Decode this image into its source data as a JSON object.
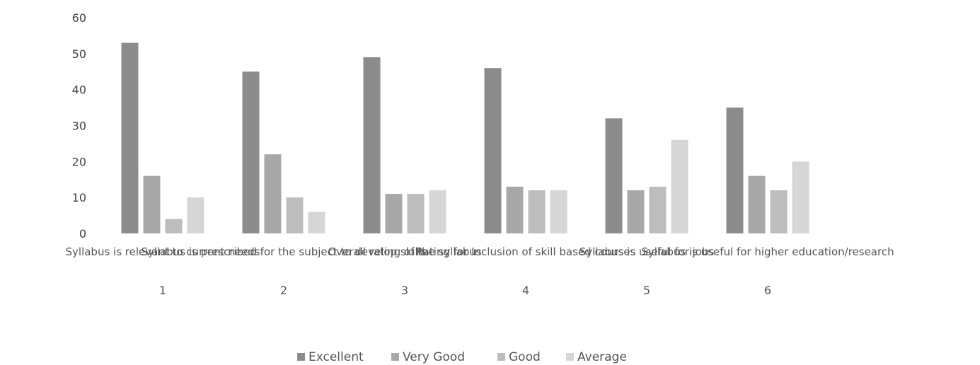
{
  "chart_data": {
    "type": "bar",
    "title": "",
    "xlabel": "",
    "ylabel": "",
    "ylim": [
      0,
      60
    ],
    "yticks": [
      0,
      10,
      20,
      30,
      40,
      50,
      60
    ],
    "grid": false,
    "legend_position": "bottom",
    "categories": [
      "Syllabus is relevant to current needs",
      "Syllabus is prescribed for the subject to develop skills",
      "Overall rating of the syllabus",
      "Rating for Inclusion of skill based courses",
      "Syllabus is useful for jobs",
      "Syllabus is useful for higher education/research"
    ],
    "category_numbers": [
      "1",
      "2",
      "3",
      "4",
      "5",
      "6"
    ],
    "series": [
      {
        "name": "Excellent",
        "color": "#8c8c8c",
        "values": [
          53,
          45,
          49,
          46,
          32,
          35
        ]
      },
      {
        "name": "Very Good",
        "color": "#a8a8a8",
        "values": [
          16,
          22,
          11,
          13,
          12,
          16
        ]
      },
      {
        "name": "Good",
        "color": "#bdbdbd",
        "values": [
          4,
          10,
          11,
          12,
          13,
          12
        ]
      },
      {
        "name": "Average",
        "color": "#d6d6d6",
        "values": [
          10,
          6,
          12,
          12,
          26,
          20
        ]
      }
    ]
  }
}
